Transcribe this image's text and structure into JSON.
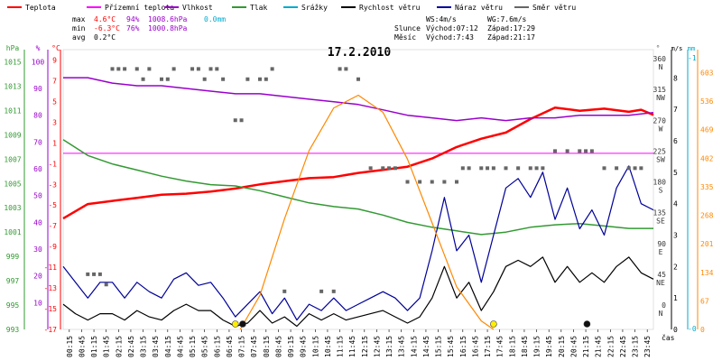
{
  "chart_data": {
    "type": "line",
    "title": "17.2.2010",
    "legend": [
      {
        "label": "Teplota",
        "color": "#ff0000"
      },
      {
        "label": "Přízemní teplota",
        "color": "#ff00ff"
      },
      {
        "label": "Vlhkost",
        "color": "#9900cc"
      },
      {
        "label": "Tlak",
        "color": "#339933"
      },
      {
        "label": "Srážky",
        "color": "#00aacc"
      },
      {
        "label": "Rychlost větru",
        "color": "#000000"
      },
      {
        "label": "Náraz větru",
        "color": "#000099"
      },
      {
        "label": "Směr větru",
        "color": "#666666"
      }
    ],
    "stats": {
      "max": {
        "label": "max",
        "temp": "4.6°C",
        "hum": "94%",
        "press": "1008.6hPa",
        "rain": "0.0mm"
      },
      "min": {
        "label": "min",
        "temp": "-6.3°C",
        "hum": "76%",
        "press": "1000.8hPa"
      },
      "avg": {
        "label": "avg",
        "temp": "0.2°C"
      }
    },
    "info": {
      "ws": "WS:4m/s",
      "wg": "WG:7.6m/s",
      "sun_label": "Slunce",
      "sun_rise": "Východ:07:12",
      "sun_set": "Západ:17:29",
      "moon_label": "Měsíc",
      "moon_rise": "Východ:7:43",
      "moon_set": "Západ:21:17"
    },
    "axes": {
      "hpa": {
        "unit": "hPa",
        "ticks": [
          993,
          995,
          997,
          999,
          1001,
          1003,
          1005,
          1007,
          1009,
          1011,
          1013,
          1015
        ],
        "range": [
          993,
          1016
        ]
      },
      "humidity": {
        "unit": "%",
        "ticks": [
          10,
          20,
          30,
          40,
          50,
          60,
          70,
          80,
          90,
          100
        ],
        "range": [
          0,
          104.5
        ]
      },
      "temp": {
        "unit": "°C",
        "ticks": [
          -17,
          -15,
          -13,
          -11,
          -9,
          -7,
          -5,
          -3,
          -1,
          1,
          3,
          5,
          7,
          9
        ],
        "range": [
          -17,
          10
        ]
      },
      "direction": {
        "unit": "°",
        "ticks": [
          {
            "v": 0,
            "l": "0",
            "d": "N"
          },
          {
            "v": 45,
            "l": "45",
            "d": "NE"
          },
          {
            "v": 90,
            "l": "90",
            "d": "E"
          },
          {
            "v": 135,
            "l": "135",
            "d": "SE"
          },
          {
            "v": 180,
            "l": "180",
            "d": "S"
          },
          {
            "v": 225,
            "l": "225",
            "d": "SW"
          },
          {
            "v": 270,
            "l": "270",
            "d": "W"
          },
          {
            "v": 315,
            "l": "315",
            "d": "NW"
          },
          {
            "v": 360,
            "l": "360",
            "d": "N"
          }
        ]
      },
      "wind": {
        "unit": "m/s",
        "ticks": [
          0,
          1,
          2,
          3,
          4,
          5,
          6,
          7,
          8
        ],
        "range": [
          0,
          8
        ]
      },
      "rain": {
        "unit": "mm",
        "ticks": [
          0,
          1
        ],
        "range": [
          0,
          1
        ]
      },
      "solar": {
        "unit": "",
        "ticks": [
          0,
          67,
          134,
          201,
          268,
          335,
          402,
          469,
          536,
          603
        ],
        "range": [
          0,
          603
        ]
      },
      "x_label": "čas",
      "x_ticks": [
        "00:15",
        "00:45",
        "01:15",
        "01:45",
        "02:15",
        "02:45",
        "03:15",
        "03:45",
        "04:15",
        "04:45",
        "05:15",
        "05:45",
        "06:15",
        "06:45",
        "07:15",
        "07:45",
        "08:15",
        "08:45",
        "09:15",
        "09:45",
        "10:15",
        "10:45",
        "11:15",
        "11:45",
        "12:15",
        "12:45",
        "13:15",
        "13:45",
        "14:15",
        "14:45",
        "15:15",
        "15:45",
        "16:15",
        "16:45",
        "17:15",
        "17:45",
        "18:15",
        "18:45",
        "19:15",
        "19:45",
        "20:15",
        "20:45",
        "21:15",
        "21:45",
        "22:15",
        "22:45",
        "23:15",
        "23:45"
      ]
    },
    "zero_line_temp": 0,
    "series": [
      {
        "name": "Teplota",
        "color": "#ff0000",
        "axis": "temp",
        "width": 2.5,
        "x": [
          0,
          1,
          2,
          3,
          4,
          5,
          6,
          7,
          8,
          9,
          10,
          11,
          12,
          13,
          14,
          15,
          16,
          17,
          18,
          19,
          20,
          21,
          22,
          23,
          23.5,
          24
        ],
        "y": [
          -6.3,
          -4.9,
          -4.6,
          -4.3,
          -4.0,
          -3.9,
          -3.7,
          -3.4,
          -3.0,
          -2.7,
          -2.4,
          -2.3,
          -1.9,
          -1.6,
          -1.3,
          -0.5,
          0.6,
          1.4,
          2.0,
          3.3,
          4.4,
          4.1,
          4.3,
          4.0,
          4.2,
          3.7
        ]
      },
      {
        "name": "Vlhkost",
        "color": "#9900cc",
        "axis": "humidity",
        "width": 1.5,
        "x": [
          0,
          1,
          2,
          3,
          4,
          5,
          6,
          7,
          8,
          9,
          10,
          11,
          12,
          13,
          14,
          15,
          16,
          17,
          18,
          19,
          20,
          21,
          22,
          23,
          24
        ],
        "y": [
          94,
          94,
          92,
          91,
          91,
          90,
          89,
          88,
          88,
          87,
          86,
          85,
          84,
          82,
          80,
          79,
          78,
          79,
          78,
          79,
          79,
          80,
          80,
          80,
          81
        ]
      },
      {
        "name": "Tlak",
        "color": "#339933",
        "axis": "hpa",
        "width": 1.5,
        "x": [
          0,
          1,
          2,
          3,
          4,
          5,
          6,
          7,
          8,
          9,
          10,
          11,
          12,
          13,
          14,
          15,
          16,
          17,
          18,
          19,
          20,
          21,
          22,
          23,
          24
        ],
        "y": [
          1008.6,
          1007.3,
          1006.6,
          1006.1,
          1005.6,
          1005.2,
          1004.9,
          1004.8,
          1004.4,
          1003.9,
          1003.4,
          1003.1,
          1002.9,
          1002.4,
          1001.8,
          1001.4,
          1001.1,
          1000.8,
          1001.0,
          1001.4,
          1001.6,
          1001.7,
          1001.5,
          1001.3,
          1001.3
        ]
      },
      {
        "name": "Náraz větru",
        "color": "#000099",
        "axis": "wind",
        "width": 1.2,
        "x": [
          0,
          0.5,
          1,
          1.5,
          2,
          2.5,
          3,
          3.5,
          4,
          4.5,
          5,
          5.5,
          6,
          6.5,
          7,
          7.5,
          8,
          8.5,
          9,
          9.5,
          10,
          10.5,
          11,
          11.5,
          12,
          12.5,
          13,
          13.5,
          14,
          14.5,
          15,
          15.5,
          16,
          16.5,
          17,
          17.5,
          18,
          18.5,
          19,
          19.5,
          20,
          20.5,
          21,
          21.5,
          22,
          22.5,
          23,
          23.5,
          24
        ],
        "y": [
          2,
          1.5,
          1,
          1.5,
          1.5,
          1,
          1.5,
          1.2,
          1,
          1.6,
          1.8,
          1.4,
          1.5,
          1.0,
          0.4,
          0.8,
          1.2,
          0.5,
          1.0,
          0.3,
          0.8,
          0.6,
          1.0,
          0.6,
          0.8,
          1.0,
          1.2,
          1.0,
          0.6,
          1.0,
          2.5,
          4.2,
          2.5,
          3.0,
          1.5,
          3.0,
          4.5,
          4.8,
          4.2,
          5.0,
          3.5,
          4.5,
          3.2,
          3.8,
          3.0,
          4.5,
          5.2,
          4.0,
          3.8
        ]
      },
      {
        "name": "Rychlost větru",
        "color": "#000000",
        "axis": "wind",
        "width": 1.2,
        "x": [
          0,
          0.5,
          1,
          1.5,
          2,
          2.5,
          3,
          3.5,
          4,
          4.5,
          5,
          5.5,
          6,
          6.5,
          7,
          7.5,
          8,
          8.5,
          9,
          9.5,
          10,
          10.5,
          11,
          11.5,
          12,
          12.5,
          13,
          13.5,
          14,
          14.5,
          15,
          15.5,
          16,
          16.5,
          17,
          17.5,
          18,
          18.5,
          19,
          19.5,
          20,
          20.5,
          21,
          21.5,
          22,
          22.5,
          23,
          23.5,
          24
        ],
        "y": [
          0.8,
          0.5,
          0.3,
          0.5,
          0.5,
          0.3,
          0.6,
          0.4,
          0.3,
          0.6,
          0.8,
          0.6,
          0.6,
          0.3,
          0.1,
          0.2,
          0.6,
          0.2,
          0.4,
          0.1,
          0.5,
          0.3,
          0.5,
          0.3,
          0.4,
          0.5,
          0.6,
          0.4,
          0.2,
          0.4,
          1.0,
          2.0,
          1.0,
          1.5,
          0.6,
          1.2,
          2.0,
          2.2,
          2.0,
          2.3,
          1.5,
          2.0,
          1.5,
          1.8,
          1.5,
          2.0,
          2.3,
          1.8,
          1.6
        ]
      },
      {
        "name": "Slunce",
        "color": "#ff8800",
        "axis": "solar",
        "width": 1.2,
        "x": [
          7.2,
          8,
          9,
          10,
          11,
          12,
          13,
          14,
          15,
          16,
          17,
          17.5
        ],
        "y": [
          0,
          80,
          260,
          420,
          520,
          550,
          510,
          400,
          250,
          100,
          20,
          0
        ]
      },
      {
        "name": "Směr větru",
        "color": "#666666",
        "axis": "direction",
        "type": "scatter",
        "x": [
          1,
          1.25,
          1.5,
          1.75,
          2.0,
          2.25,
          2.5,
          3,
          3.25,
          3.5,
          4.0,
          4.25,
          4.5,
          5.25,
          5.5,
          5.75,
          6.0,
          6.25,
          6.5,
          7.0,
          7.25,
          7.5,
          8.0,
          8.25,
          8.5,
          9.0,
          10.5,
          11.0,
          11.25,
          11.5,
          12.0,
          12.5,
          13.0,
          13.25,
          13.5,
          14.0,
          14.5,
          15.0,
          15.5,
          16.0,
          16.25,
          16.5,
          17.0,
          17.25,
          17.5,
          18.0,
          18.5,
          19.0,
          19.25,
          19.5,
          20.0,
          20.5,
          21.0,
          21.25,
          21.5,
          22.0,
          22.5,
          23.0,
          23.25,
          23.5
        ],
        "y": [
          45,
          45,
          45,
          30,
          345,
          345,
          345,
          345,
          330,
          345,
          330,
          330,
          345,
          345,
          345,
          330,
          345,
          345,
          330,
          270,
          270,
          330,
          330,
          330,
          345,
          20,
          20,
          20,
          345,
          345,
          330,
          200,
          200,
          200,
          200,
          180,
          180,
          180,
          180,
          180,
          200,
          200,
          200,
          200,
          200,
          200,
          200,
          200,
          200,
          200,
          225,
          225,
          225,
          225,
          225,
          200,
          200,
          200,
          200,
          200
        ]
      }
    ],
    "markers": [
      {
        "x": 7.0,
        "color": "#ffee00",
        "label": "sunrise"
      },
      {
        "x": 7.3,
        "color": "#111111",
        "label": "moonrise"
      },
      {
        "x": 17.5,
        "color": "#ffee00",
        "label": "sunset"
      },
      {
        "x": 21.3,
        "color": "#111111",
        "label": "moonset"
      }
    ]
  }
}
